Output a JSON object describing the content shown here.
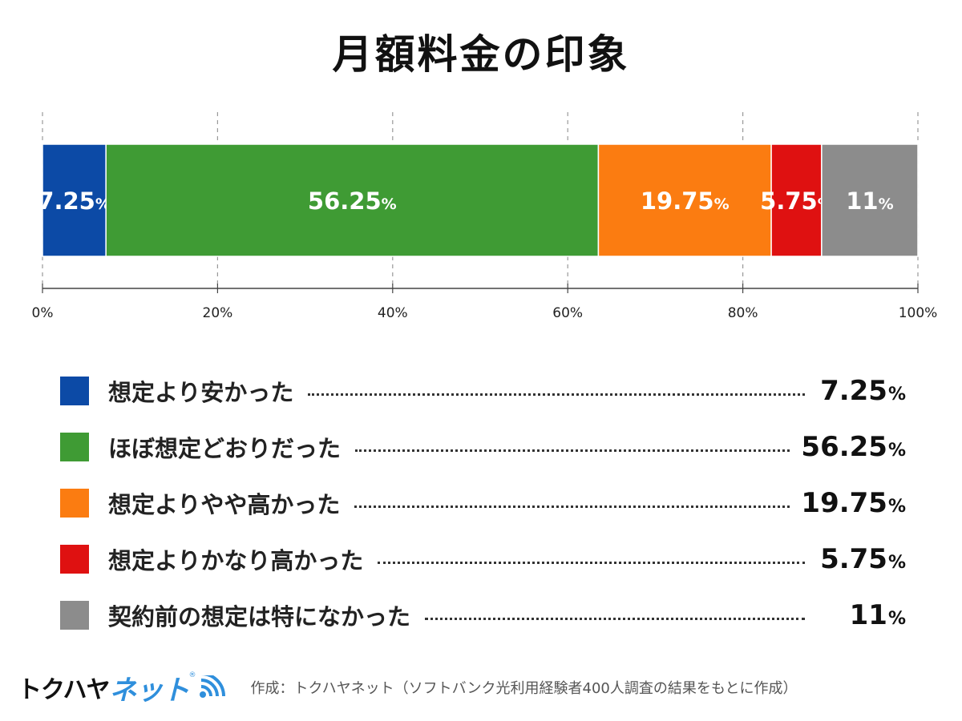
{
  "title": "月額料金の印象",
  "chart_data": {
    "type": "bar",
    "orientation": "horizontal",
    "stacked": true,
    "title": "月額料金の印象",
    "xlim": [
      0,
      100
    ],
    "x_ticks": [
      "0%",
      "20%",
      "40%",
      "60%",
      "80%",
      "100%"
    ],
    "grid": true,
    "legend_position": "bottom",
    "unit": "%",
    "series": [
      {
        "name": "想定より安かった",
        "value": 7.25,
        "label": "7.25",
        "color": "#0c4aa6"
      },
      {
        "name": "ほぼ想定どおりだった",
        "value": 56.25,
        "label": "56.25",
        "color": "#3f9b34"
      },
      {
        "name": "想定よりやや高かった",
        "value": 19.75,
        "label": "19.75",
        "color": "#fb7c11"
      },
      {
        "name": "想定よりかなり高かった",
        "value": 5.75,
        "label": "5.75",
        "color": "#df1111"
      },
      {
        "name": "契約前の想定は特になかった",
        "value": 11,
        "label": "11",
        "color": "#8c8c8c"
      }
    ]
  },
  "footer": {
    "logo_main": "トクハヤ",
    "logo_accent": "ネット",
    "logo_reg": "®",
    "credit": "作成：トクハヤネット（ソフトバンク光利用経験者400人調査の結果をもとに作成）"
  }
}
